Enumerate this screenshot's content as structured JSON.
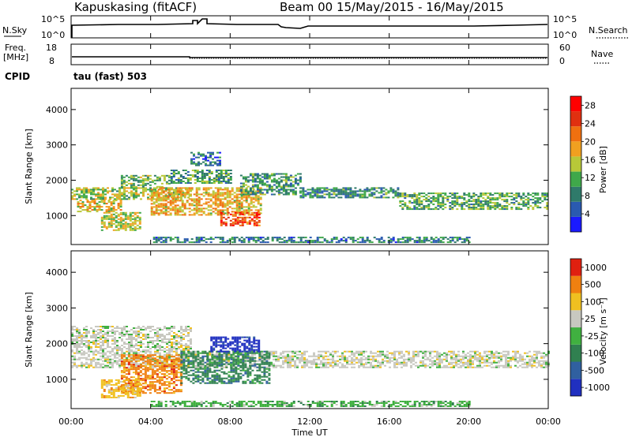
{
  "header": {
    "station": "Kapuskasing (fitACF)",
    "beam_date": "Beam 00  15/May/2015 - 16/May/2015"
  },
  "noise_panel": {
    "left_label": "N.Sky",
    "right_label": "N.Search",
    "left_ticks": [
      "10^5",
      "10^0"
    ],
    "right_ticks": [
      "10^5",
      "10^0"
    ]
  },
  "freq_panel": {
    "left_label_1": "Freq.",
    "left_label_2": "[MHz]",
    "right_label": "Nave",
    "left_ticks": [
      "18",
      "8"
    ],
    "right_ticks": [
      "60",
      "0"
    ]
  },
  "cpid": {
    "label": "CPID",
    "value": "tau (fast) 503"
  },
  "x_axis": {
    "label": "Time UT",
    "ticks": [
      "00:00",
      "04:00",
      "08:00",
      "12:00",
      "16:00",
      "20:00",
      "00:00"
    ],
    "range_hours": [
      0,
      24
    ]
  },
  "chart_data": [
    {
      "type": "heatmap",
      "ylabel": "Slant Range [km]",
      "ylim": [
        180,
        4600
      ],
      "yticks": [
        1000,
        2000,
        3000,
        4000
      ],
      "ytick_labels": [
        "1000",
        "2000",
        "3000",
        "4000"
      ],
      "colorbar": {
        "label": "Power [dB]",
        "tick_labels": [
          "4",
          "8",
          "12",
          "16",
          "20",
          "24",
          "28"
        ],
        "tick_values": [
          4,
          8,
          12,
          16,
          20,
          24,
          28
        ],
        "range": [
          0,
          30
        ],
        "colors": [
          "#1a1aff",
          "#2a5ab0",
          "#2f7a6a",
          "#3fa84a",
          "#b8c838",
          "#f0a020",
          "#f07010",
          "#e03010",
          "#ff0000"
        ]
      },
      "regions": [
        {
          "t": [
            0.0,
            6.0
          ],
          "r": [
            1450,
            1800
          ],
          "value": 14
        },
        {
          "t": [
            0.3,
            2.5
          ],
          "r": [
            1100,
            1450
          ],
          "value": 17
        },
        {
          "t": [
            1.5,
            3.5
          ],
          "r": [
            600,
            1100
          ],
          "value": 15
        },
        {
          "t": [
            2.5,
            5.0
          ],
          "r": [
            1800,
            2150
          ],
          "value": 12
        },
        {
          "t": [
            4.0,
            9.5
          ],
          "r": [
            1000,
            1800
          ],
          "value": 18
        },
        {
          "t": [
            7.5,
            9.5
          ],
          "r": [
            700,
            1100
          ],
          "value": 24
        },
        {
          "t": [
            5.0,
            8.0
          ],
          "r": [
            1900,
            2300
          ],
          "value": 10
        },
        {
          "t": [
            8.5,
            11.5
          ],
          "r": [
            1600,
            2200
          ],
          "value": 10
        },
        {
          "t": [
            11.5,
            16.5
          ],
          "r": [
            1500,
            1800
          ],
          "value": 9
        },
        {
          "t": [
            16.5,
            24.0
          ],
          "r": [
            1200,
            1650
          ],
          "value": 11
        },
        {
          "t": [
            4.0,
            20.0
          ],
          "r": [
            250,
            400
          ],
          "value": 8
        },
        {
          "t": [
            6.0,
            7.5
          ],
          "r": [
            2400,
            2800
          ],
          "value": 7
        }
      ]
    },
    {
      "type": "heatmap",
      "ylabel": "Slant Range [km]",
      "ylim": [
        180,
        4600
      ],
      "yticks": [
        1000,
        2000,
        3000,
        4000
      ],
      "ytick_labels": [
        "1000",
        "2000",
        "3000",
        "4000"
      ],
      "colorbar": {
        "label": "Velocity [m s⁻¹]",
        "tick_labels": [
          "1000",
          "500",
          "100",
          "25",
          "-25",
          "-100",
          "-500",
          "-1000"
        ],
        "colors": [
          "#2030c0",
          "#3060a0",
          "#308050",
          "#40b040",
          "#c8c8c0",
          "#f0c020",
          "#f08010",
          "#e02010"
        ]
      },
      "regions": [
        {
          "t": [
            0.0,
            24.0
          ],
          "r": [
            1350,
            1800
          ],
          "level": 4
        },
        {
          "t": [
            0.0,
            6.0
          ],
          "r": [
            1800,
            2500
          ],
          "level": 4
        },
        {
          "t": [
            2.5,
            5.5
          ],
          "r": [
            600,
            1700
          ],
          "level": 6
        },
        {
          "t": [
            5.5,
            10.0
          ],
          "r": [
            900,
            1800
          ],
          "level": 2
        },
        {
          "t": [
            7.0,
            9.5
          ],
          "r": [
            1800,
            2200
          ],
          "level": 0
        },
        {
          "t": [
            1.5,
            3.5
          ],
          "r": [
            500,
            1000
          ],
          "level": 5
        },
        {
          "t": [
            4.0,
            20.0
          ],
          "r": [
            250,
            400
          ],
          "level": 3
        }
      ]
    }
  ]
}
